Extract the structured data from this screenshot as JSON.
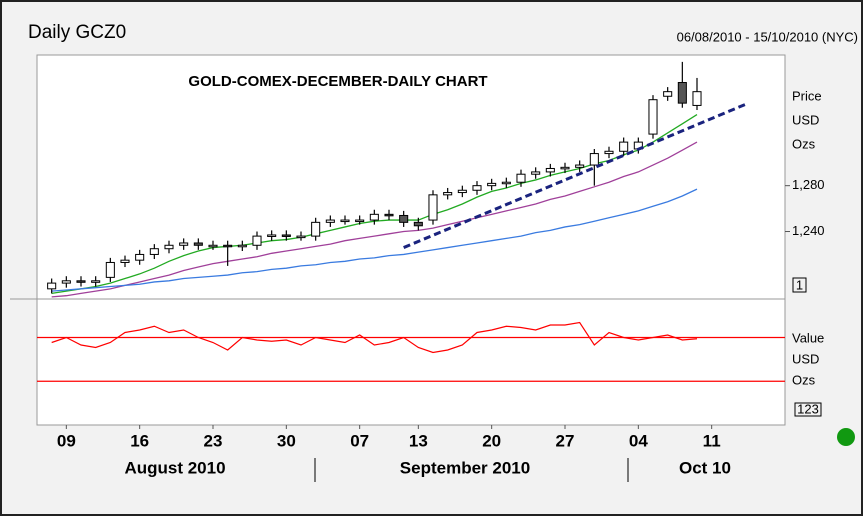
{
  "header": {
    "title": "Daily GCZ0",
    "range": "06/08/2010 - 15/10/2010 (NYC)"
  },
  "chart_data": {
    "type": "candlestick",
    "title": "GOLD-COMEX-DECEMBER-DAILY CHART",
    "x": [
      0,
      1,
      2,
      3,
      4,
      5,
      6,
      7,
      8,
      9,
      10,
      11,
      12,
      13,
      14,
      15,
      16,
      17,
      18,
      19,
      20,
      21,
      22,
      23,
      24,
      25,
      26,
      27,
      28,
      29,
      30,
      31,
      32,
      33,
      34,
      35,
      36,
      37,
      38,
      39,
      40,
      41,
      42,
      43,
      44
    ],
    "open": [
      1190,
      1195,
      1197,
      1196,
      1200,
      1213,
      1215,
      1220,
      1225,
      1228,
      1230,
      1228,
      1228,
      1227,
      1228,
      1236,
      1237,
      1236,
      1236,
      1248,
      1250,
      1250,
      1250,
      1255,
      1254,
      1248,
      1250,
      1272,
      1274,
      1276,
      1280,
      1282,
      1283,
      1290,
      1292,
      1295,
      1296,
      1298,
      1308,
      1310,
      1312,
      1325,
      1358,
      1370,
      1350
    ],
    "high": [
      1199,
      1201,
      1201,
      1201,
      1217,
      1219,
      1224,
      1229,
      1232,
      1234,
      1234,
      1232,
      1232,
      1232,
      1240,
      1241,
      1241,
      1240,
      1252,
      1254,
      1254,
      1254,
      1259,
      1259,
      1258,
      1252,
      1276,
      1278,
      1280,
      1284,
      1286,
      1287,
      1294,
      1296,
      1299,
      1300,
      1302,
      1312,
      1314,
      1322,
      1322,
      1359,
      1366,
      1388,
      1374
    ],
    "low": [
      1186,
      1191,
      1192,
      1192,
      1196,
      1209,
      1211,
      1216,
      1221,
      1224,
      1224,
      1224,
      1210,
      1223,
      1224,
      1232,
      1232,
      1232,
      1232,
      1244,
      1246,
      1246,
      1246,
      1250,
      1244,
      1241,
      1246,
      1268,
      1270,
      1272,
      1276,
      1278,
      1279,
      1286,
      1288,
      1291,
      1292,
      1280,
      1304,
      1306,
      1308,
      1321,
      1354,
      1348,
      1346
    ],
    "close": [
      1195,
      1197,
      1196,
      1197,
      1213,
      1215,
      1220,
      1225,
      1228,
      1230,
      1228,
      1228,
      1227,
      1228,
      1236,
      1237,
      1236,
      1236,
      1248,
      1250,
      1250,
      1250,
      1255,
      1254,
      1248,
      1245,
      1272,
      1274,
      1276,
      1280,
      1282,
      1283,
      1290,
      1292,
      1295,
      1296,
      1298,
      1308,
      1310,
      1318,
      1318,
      1355,
      1362,
      1352,
      1362
    ],
    "up_color": "#ffffff",
    "down_color": "#555555",
    "xlim": [
      -1,
      50
    ],
    "xticks": [
      {
        "value": 1,
        "label": "09"
      },
      {
        "value": 6,
        "label": "16"
      },
      {
        "value": 11,
        "label": "23"
      },
      {
        "value": 16,
        "label": "30"
      },
      {
        "value": 21,
        "label": "07"
      },
      {
        "value": 25,
        "label": "13"
      },
      {
        "value": 30,
        "label": "20"
      },
      {
        "value": 35,
        "label": "27"
      },
      {
        "value": 40,
        "label": "04"
      },
      {
        "value": 45,
        "label": "11"
      }
    ],
    "month_labels": [
      "August 2010",
      "September 2010",
      "Oct 10"
    ],
    "ylim": [
      1182,
      1394
    ],
    "yticks": [
      {
        "value": 1240,
        "label": "1,240"
      },
      {
        "value": 1280,
        "label": "1,280"
      }
    ],
    "y_axis_label": [
      "Price",
      "USD",
      "Ozs"
    ],
    "scale_box": "1",
    "moving_averages": [
      {
        "color": "#22aa22",
        "values": [
          1186,
          1188,
          1190,
          1192,
          1195,
          1199,
          1203,
          1208,
          1214,
          1219,
          1223,
          1226,
          1227,
          1228,
          1230,
          1232,
          1233,
          1235,
          1238,
          1241,
          1244,
          1247,
          1249,
          1250,
          1250,
          1250,
          1255,
          1259,
          1264,
          1270,
          1275,
          1278,
          1282,
          1285,
          1289,
          1292,
          1295,
          1299,
          1302,
          1307,
          1311,
          1318,
          1326,
          1334,
          1342
        ]
      },
      {
        "color": "#a0409a",
        "values": [
          1183,
          1184,
          1186,
          1188,
          1190,
          1193,
          1196,
          1199,
          1202,
          1206,
          1209,
          1212,
          1214,
          1216,
          1218,
          1221,
          1223,
          1225,
          1227,
          1229,
          1232,
          1234,
          1236,
          1238,
          1240,
          1241,
          1243,
          1246,
          1249,
          1252,
          1255,
          1258,
          1261,
          1264,
          1268,
          1271,
          1275,
          1279,
          1283,
          1288,
          1292,
          1298,
          1304,
          1311,
          1318
        ]
      },
      {
        "color": "#3a7be0",
        "values": [
          1188,
          1189,
          1190,
          1191,
          1192,
          1193,
          1194,
          1196,
          1197,
          1199,
          1200,
          1201,
          1202,
          1204,
          1205,
          1207,
          1208,
          1210,
          1211,
          1213,
          1214,
          1216,
          1217,
          1219,
          1220,
          1222,
          1224,
          1226,
          1228,
          1230,
          1232,
          1234,
          1236,
          1239,
          1241,
          1244,
          1246,
          1249,
          1252,
          1255,
          1258,
          1262,
          1266,
          1271,
          1277
        ]
      }
    ],
    "trendline": {
      "color": "#1a237e",
      "x": [
        24,
        47.5
      ],
      "values": [
        1226,
        1352
      ]
    },
    "indicator": {
      "type": "line",
      "color": "#ff0000",
      "values": [
        66,
        70,
        64,
        62,
        66,
        74,
        76,
        79,
        74,
        76,
        70,
        66,
        60,
        70,
        68,
        67,
        68,
        64,
        70,
        68,
        66,
        72,
        64,
        66,
        70,
        62,
        58,
        60,
        64,
        74,
        76,
        79,
        78,
        76,
        80,
        80,
        82,
        64,
        74,
        70,
        68,
        70,
        72,
        68,
        69
      ],
      "ylim": [
        0,
        100
      ],
      "levels": [
        70,
        35
      ],
      "y_axis_label": [
        "Value",
        "USD",
        "Ozs"
      ],
      "scale_box": "123"
    }
  }
}
